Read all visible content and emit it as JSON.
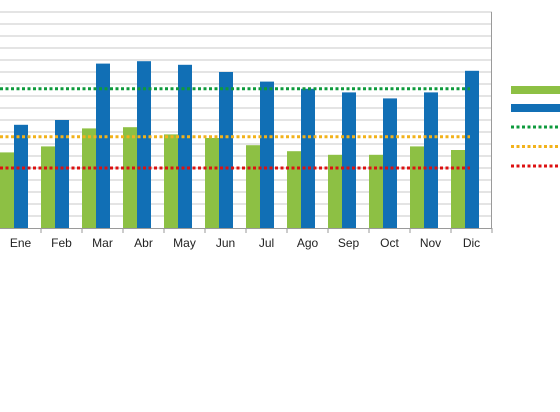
{
  "chart_data": {
    "type": "bar",
    "title": "",
    "xlabel": "",
    "ylabel": "",
    "categories": [
      "Ene",
      "Feb",
      "Mar",
      "Abr",
      "May",
      "Jun",
      "Jul",
      "Ago",
      "Sep",
      "Oct",
      "Nov",
      "Dic"
    ],
    "ylim": [
      0,
      18
    ],
    "grid": true,
    "legend_position": "right",
    "series": [
      {
        "kind": "bar",
        "color": "#8dc044",
        "values": [
          6.3,
          6.8,
          8.3,
          8.4,
          7.8,
          7.5,
          6.9,
          6.4,
          6.1,
          6.1,
          6.8,
          6.5
        ]
      },
      {
        "kind": "bar",
        "color": "#116fb5",
        "values": [
          8.6,
          9.0,
          13.7,
          13.9,
          13.6,
          13.0,
          12.2,
          11.6,
          11.3,
          10.8,
          11.3,
          13.1
        ]
      },
      {
        "kind": "line",
        "style": "dotted",
        "color": "#0e9a3c",
        "value": 11.6
      },
      {
        "kind": "line",
        "style": "dotted",
        "color": "#f2b21b",
        "value": 7.6
      },
      {
        "kind": "line",
        "style": "dotted",
        "color": "#dd1111",
        "value": 5.0
      }
    ]
  }
}
